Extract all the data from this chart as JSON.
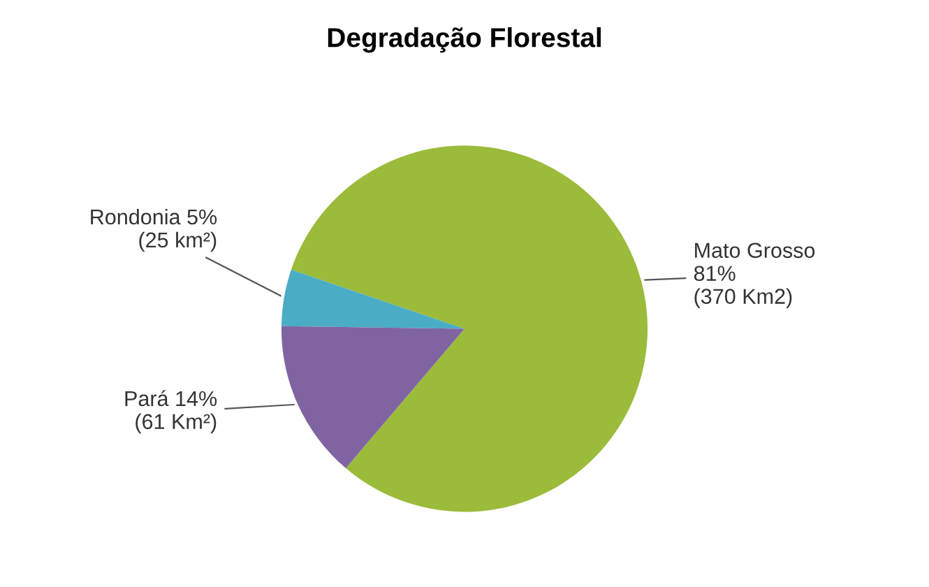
{
  "chart_data": {
    "type": "pie",
    "title": "Degradação Florestal",
    "categories": [
      "Mato Grosso",
      "Rondonia",
      "Pará"
    ],
    "values": [
      81,
      5,
      14
    ],
    "colors": [
      "#9bbb3b",
      "#4bacc6",
      "#8064a2"
    ],
    "value_labels": [
      "81%\n(370 Km2)",
      "5%\n(25 km²)",
      "14%\n(61 Km²)"
    ],
    "legend": false
  }
}
